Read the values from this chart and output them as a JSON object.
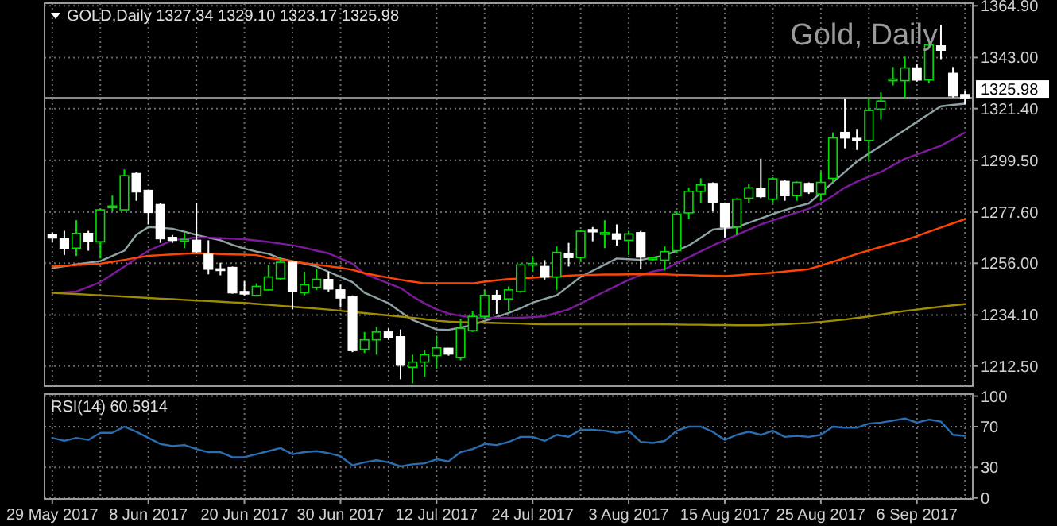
{
  "chart_data": [
    {
      "type": "candlestick",
      "title": "Gold, Daily",
      "subtitle": "GOLD,Daily 1327.34 1329.10 1323.17 1325.98",
      "colors": [
        "#ffffff",
        "#ffffff",
        "#00e000",
        "#ffffff",
        "#00e000",
        "#00e000",
        "#00e000",
        "#ffffff",
        "#ffffff",
        "#ffffff",
        "#ffffff",
        "#00e000",
        "#ffffff",
        "#ffffff",
        "#ffffff",
        "#ffffff",
        "#ffffff",
        "#00e000",
        "#00e000",
        "#00e000",
        "#ffffff",
        "#00e000",
        "#00e000",
        "#ffffff",
        "#ffffff",
        "#ffffff",
        "#00e000",
        "#00e000",
        "#ffffff",
        "#ffffff",
        "#00e000",
        "#00e000",
        "#00e000",
        "#ffffff",
        "#00e000",
        "#00e000",
        "#00e000",
        "#ffffff",
        "#00e000",
        "#00e000",
        "#00e000",
        "#ffffff",
        "#00e000",
        "#ffffff",
        "#00e000",
        "#ffffff",
        "#00e000",
        "#ffffff",
        "#00e000",
        "#ffffff",
        "#00e000",
        "#00e000",
        "#00e000",
        "#00e000",
        "#00e000",
        "#ffffff",
        "#ffffff",
        "#00e000",
        "#00e000",
        "#ffffff",
        "#00e000",
        "#ffffff",
        "#00e000",
        "#ffffff",
        "#00e000",
        "#00e000",
        "#ffffff",
        "#ffffff",
        "#00e000",
        "#00e000",
        "#00e000",
        "#00e000",
        "#ffffff",
        "#00e000",
        "#ffffff",
        "#ffffff",
        "#ffffff"
      ],
      "categories": [
        null,
        null,
        null,
        null,
        null,
        null,
        null,
        null,
        null,
        null,
        null,
        null,
        null,
        null,
        null,
        null,
        null,
        null,
        null,
        null,
        null,
        null,
        null,
        null,
        null,
        null,
        null,
        null,
        null,
        null,
        null,
        null,
        null,
        null,
        null,
        null,
        null,
        null,
        null,
        null,
        null,
        null,
        null,
        null,
        null,
        null,
        null,
        null,
        null,
        null,
        null,
        null,
        null,
        null,
        null,
        null,
        null,
        null,
        null,
        null,
        null,
        null,
        null,
        null,
        null,
        null,
        null,
        null,
        null,
        null,
        null,
        null,
        null,
        null,
        null,
        null,
        null
      ],
      "ohlc": [
        [
          1268.0,
          1269.0,
          1265.0,
          1266.7
        ],
        [
          1266.4,
          1269.7,
          1259.5,
          1262.4
        ],
        [
          1262.4,
          1274.2,
          1259.1,
          1268.6
        ],
        [
          1268.6,
          1269.7,
          1261.3,
          1265.3
        ],
        [
          1265.1,
          1279.1,
          1258.0,
          1278.6
        ],
        [
          1279.5,
          1284.6,
          1278.0,
          1280.2
        ],
        [
          1278.6,
          1295.7,
          1278.6,
          1293.0
        ],
        [
          1293.9,
          1294.6,
          1282.4,
          1286.2
        ],
        [
          1286.8,
          1287.0,
          1272.4,
          1277.5
        ],
        [
          1280.8,
          1281.3,
          1264.6,
          1266.4
        ],
        [
          1266.9,
          1268.0,
          1264.6,
          1265.7
        ],
        [
          1265.5,
          1268.8,
          1262.4,
          1266.0
        ],
        [
          1265.7,
          1281.3,
          1260.2,
          1260.9
        ],
        [
          1259.8,
          1265.7,
          1251.3,
          1253.5
        ],
        [
          1253.6,
          1256.2,
          1250.9,
          1253.4
        ],
        [
          1254.2,
          1254.6,
          1243.1,
          1243.5
        ],
        [
          1244.0,
          1248.4,
          1242.4,
          1243.0
        ],
        [
          1242.4,
          1247.5,
          1242.0,
          1246.2
        ],
        [
          1244.7,
          1255.1,
          1244.4,
          1250.2
        ],
        [
          1249.5,
          1258.6,
          1249.1,
          1256.4
        ],
        [
          1256.4,
          1256.9,
          1236.6,
          1244.0
        ],
        [
          1243.5,
          1252.4,
          1242.4,
          1246.9
        ],
        [
          1245.8,
          1253.5,
          1244.7,
          1249.2
        ],
        [
          1249.1,
          1252.4,
          1244.0,
          1245.1
        ],
        [
          1244.7,
          1246.9,
          1237.2,
          1241.3
        ],
        [
          1241.7,
          1242.4,
          1218.4,
          1219.1
        ],
        [
          1219.6,
          1226.9,
          1218.0,
          1223.6
        ],
        [
          1223.6,
          1229.1,
          1217.3,
          1226.9
        ],
        [
          1226.9,
          1228.4,
          1223.6,
          1224.7
        ],
        [
          1224.9,
          1228.0,
          1206.9,
          1212.9
        ],
        [
          1212.0,
          1217.3,
          1205.2,
          1214.2
        ],
        [
          1214.2,
          1219.1,
          1208.0,
          1217.3
        ],
        [
          1216.9,
          1225.3,
          1211.4,
          1220.2
        ],
        [
          1220.0,
          1220.2,
          1216.9,
          1217.6
        ],
        [
          1216.2,
          1232.4,
          1214.9,
          1228.4
        ],
        [
          1227.5,
          1235.7,
          1226.9,
          1233.5
        ],
        [
          1233.5,
          1244.7,
          1232.4,
          1242.4
        ],
        [
          1242.4,
          1244.7,
          1234.6,
          1240.9
        ],
        [
          1240.9,
          1246.2,
          1235.8,
          1244.7
        ],
        [
          1244.0,
          1255.7,
          1243.5,
          1255.3
        ],
        [
          1255.5,
          1258.6,
          1252.4,
          1255.9
        ],
        [
          1254.6,
          1257.3,
          1249.1,
          1250.2
        ],
        [
          1250.2,
          1263.1,
          1244.7,
          1260.6
        ],
        [
          1260.2,
          1264.6,
          1254.6,
          1258.4
        ],
        [
          1258.4,
          1270.2,
          1256.9,
          1269.5
        ],
        [
          1270.2,
          1271.3,
          1265.3,
          1269.3
        ],
        [
          1268.6,
          1274.2,
          1262.4,
          1268.9
        ],
        [
          1268.4,
          1272.4,
          1263.5,
          1266.2
        ],
        [
          1265.7,
          1269.7,
          1259.5,
          1268.4
        ],
        [
          1268.9,
          1269.7,
          1253.5,
          1258.6
        ],
        [
          1257.9,
          1258.6,
          1256.9,
          1258.2
        ],
        [
          1257.3,
          1263.1,
          1252.9,
          1260.9
        ],
        [
          1261.3,
          1277.9,
          1260.2,
          1276.8
        ],
        [
          1277.3,
          1287.9,
          1274.6,
          1286.4
        ],
        [
          1286.4,
          1291.9,
          1281.3,
          1289.1
        ],
        [
          1289.7,
          1290.2,
          1277.9,
          1281.7
        ],
        [
          1281.3,
          1281.7,
          1266.9,
          1271.3
        ],
        [
          1271.3,
          1283.5,
          1268.0,
          1283.1
        ],
        [
          1283.5,
          1289.7,
          1281.3,
          1287.9
        ],
        [
          1287.5,
          1300.2,
          1283.5,
          1284.2
        ],
        [
          1283.1,
          1292.4,
          1281.7,
          1291.7
        ],
        [
          1290.6,
          1291.3,
          1282.4,
          1284.6
        ],
        [
          1284.6,
          1290.6,
          1282.4,
          1290.2
        ],
        [
          1289.7,
          1290.2,
          1285.3,
          1286.2
        ],
        [
          1285.3,
          1294.6,
          1282.4,
          1290.2
        ],
        [
          1291.9,
          1311.3,
          1290.2,
          1309.0
        ],
        [
          1311.3,
          1325.7,
          1304.6,
          1309.0
        ],
        [
          1308.8,
          1312.8,
          1303.9,
          1307.9
        ],
        [
          1307.9,
          1325.7,
          1299.0,
          1320.6
        ],
        [
          1321.2,
          1328.3,
          1316.8,
          1324.6
        ],
        [
          1333.2,
          1339.0,
          1331.2,
          1333.9
        ],
        [
          1333.2,
          1343.4,
          1325.7,
          1338.6
        ],
        [
          1338.6,
          1340.1,
          1332.8,
          1333.5
        ],
        [
          1333.5,
          1349.0,
          1332.3,
          1348.3
        ],
        [
          1347.9,
          1356.8,
          1342.3,
          1346.1
        ],
        [
          1336.3,
          1339.0,
          1326.1,
          1326.8
        ],
        [
          1327.34,
          1329.1,
          1323.17,
          1325.98
        ]
      ],
      "series": [
        {
          "type": "line",
          "color": "#8fa3a6",
          "values": [
            1254.0,
            1254.7,
            1255.5,
            1256.2,
            1256.9,
            1259.1,
            1261.3,
            1268.0,
            1271.3,
            1271.0,
            1270.6,
            1269.3,
            1268.0,
            1266.8,
            1265.7,
            1263.8,
            1262.2,
            1260.9,
            1260.0,
            1258.0,
            1256.9,
            1255.8,
            1254.6,
            1252.4,
            1250.2,
            1248.0,
            1243.5,
            1241.3,
            1239.1,
            1235.4,
            1232.0,
            1230.0,
            1228.0,
            1227.8,
            1228.8,
            1229.9,
            1231.6,
            1233.3,
            1235.0,
            1237.0,
            1239.3,
            1240.9,
            1242.4,
            1246.3,
            1250.2,
            1252.8,
            1255.4,
            1258.0,
            1257.7,
            1257.4,
            1258.3,
            1259.3,
            1261.3,
            1263.5,
            1266.8,
            1270.2,
            1270.8,
            1271.3,
            1273.1,
            1275.0,
            1276.8,
            1278.5,
            1280.0,
            1281.3,
            1285.7,
            1290.2,
            1294.6,
            1299.0,
            1302.4,
            1305.7,
            1309.0,
            1312.4,
            1315.8,
            1319.1,
            1322.4,
            1323.0,
            1323.5
          ]
        },
        {
          "type": "line",
          "color": "#7d1a9c",
          "values": [
            1243.5,
            1243.7,
            1244.0,
            1246.0,
            1248.0,
            1251.3,
            1254.6,
            1258.0,
            1261.3,
            1263.5,
            1265.7,
            1266.3,
            1266.9,
            1266.8,
            1266.6,
            1266.4,
            1266.2,
            1265.6,
            1265.0,
            1264.3,
            1263.6,
            1262.5,
            1261.3,
            1260.2,
            1258.0,
            1255.8,
            1251.5,
            1249.5,
            1247.5,
            1245.5,
            1242.0,
            1239.0,
            1236.5,
            1234.7,
            1233.8,
            1233.0,
            1232.9,
            1232.9,
            1232.9,
            1232.9,
            1233.2,
            1233.6,
            1235.0,
            1236.5,
            1239.0,
            1241.5,
            1244.0,
            1246.5,
            1249.0,
            1251.0,
            1252.5,
            1253.5,
            1256.0,
            1258.5,
            1261.0,
            1263.5,
            1265.7,
            1268.0,
            1270.2,
            1272.4,
            1274.1,
            1275.8,
            1277.5,
            1279.1,
            1281.5,
            1284.5,
            1288.0,
            1290.5,
            1292.6,
            1294.6,
            1297.4,
            1300.2,
            1302.0,
            1303.9,
            1305.7,
            1308.5,
            1311.3
          ]
        },
        {
          "type": "line",
          "color": "#ff4500",
          "values": [
            1254.6,
            1254.9,
            1255.2,
            1255.5,
            1255.8,
            1256.6,
            1257.4,
            1258.3,
            1259.1,
            1259.4,
            1259.7,
            1260.0,
            1260.2,
            1260.1,
            1259.9,
            1259.7,
            1259.6,
            1259.4,
            1258.2,
            1257.6,
            1256.8,
            1256.0,
            1255.4,
            1254.7,
            1254.1,
            1253.2,
            1251.8,
            1250.8,
            1249.9,
            1249.0,
            1248.2,
            1247.5,
            1247.5,
            1247.5,
            1247.5,
            1247.5,
            1248.2,
            1248.8,
            1249.3,
            1249.6,
            1249.9,
            1250.2,
            1250.4,
            1250.7,
            1251.0,
            1251.1,
            1251.2,
            1251.2,
            1251.3,
            1251.3,
            1251.3,
            1251.3,
            1251.1,
            1251.0,
            1250.8,
            1250.7,
            1250.6,
            1250.9,
            1251.3,
            1251.6,
            1252.0,
            1252.5,
            1253.0,
            1253.5,
            1255.0,
            1256.6,
            1258.2,
            1259.9,
            1261.4,
            1262.9,
            1264.4,
            1265.7,
            1267.5,
            1269.3,
            1271.1,
            1272.9,
            1274.6
          ]
        },
        {
          "type": "line",
          "color": "#a08c00",
          "values": [
            1243.5,
            1243.2,
            1243.0,
            1242.7,
            1242.4,
            1242.2,
            1241.9,
            1241.6,
            1241.3,
            1241.0,
            1240.8,
            1240.5,
            1240.2,
            1240.0,
            1239.7,
            1239.4,
            1239.2,
            1238.8,
            1238.4,
            1238.0,
            1237.6,
            1237.2,
            1236.8,
            1236.4,
            1235.9,
            1235.4,
            1234.9,
            1234.4,
            1233.9,
            1233.4,
            1232.9,
            1232.3,
            1231.7,
            1231.3,
            1231.1,
            1231.0,
            1230.9,
            1230.7,
            1230.6,
            1230.5,
            1230.3,
            1230.2,
            1230.2,
            1230.2,
            1230.2,
            1230.2,
            1230.2,
            1230.2,
            1230.2,
            1230.2,
            1230.2,
            1230.2,
            1230.1,
            1230.0,
            1230.0,
            1229.9,
            1229.9,
            1229.8,
            1229.8,
            1229.8,
            1230.0,
            1230.2,
            1230.5,
            1230.7,
            1231.2,
            1231.7,
            1232.2,
            1232.8,
            1233.5,
            1234.3,
            1235.1,
            1235.8,
            1236.4,
            1237.0,
            1237.6,
            1238.2,
            1238.7
          ]
        }
      ],
      "ylim": [
        1204,
        1366
      ],
      "yticks": [
        {
          "value": 1212.5,
          "label": "1212.50"
        },
        {
          "value": 1234.1,
          "label": "1234.10"
        },
        {
          "value": 1256,
          "label": "1256.00"
        },
        {
          "value": 1277.6,
          "label": "1277.60"
        },
        {
          "value": 1299.5,
          "label": "1299.50"
        },
        {
          "value": 1321.4,
          "label": "1321.40"
        },
        {
          "value": 1343,
          "label": "1343.00"
        },
        {
          "value": 1364.9,
          "label": "1364.90"
        }
      ],
      "grid": true,
      "ref_lines": [
        {
          "axis": "y",
          "value": 1325.98,
          "label": "1325.98",
          "color": "#8a8a8a"
        }
      ]
    },
    {
      "type": "line",
      "title": "RSI(14) 60.5914",
      "categories": [
        "29 May 2017",
        null,
        null,
        null,
        null,
        null,
        null,
        null,
        "8 Jun 2017",
        null,
        null,
        null,
        null,
        null,
        null,
        null,
        "20 Jun 2017",
        null,
        null,
        null,
        null,
        null,
        null,
        null,
        "30 Jun 2017",
        null,
        null,
        null,
        null,
        null,
        null,
        null,
        "12 Jul 2017",
        null,
        null,
        null,
        null,
        null,
        null,
        null,
        "24 Jul 2017",
        null,
        null,
        null,
        null,
        null,
        null,
        null,
        "3 Aug 2017",
        null,
        null,
        null,
        null,
        null,
        null,
        null,
        "15 Aug 2017",
        null,
        null,
        null,
        null,
        null,
        null,
        null,
        "25 Aug 2017",
        null,
        null,
        null,
        null,
        null,
        null,
        null,
        "6 Sep 2017",
        null,
        null,
        null,
        null
      ],
      "series": [
        {
          "color": "#2a6db0",
          "values": [
            59,
            56,
            59,
            57,
            64,
            64,
            70,
            65,
            59,
            53,
            51,
            52,
            48,
            45,
            45,
            40,
            40,
            43,
            46,
            49,
            43,
            45,
            46,
            44,
            41,
            32,
            35,
            37,
            35,
            31,
            33,
            34,
            38,
            36,
            45,
            48,
            53,
            52,
            55,
            60,
            60,
            56,
            62,
            60,
            67,
            67,
            66,
            64,
            66,
            55,
            54,
            56,
            66,
            70,
            70,
            65,
            57,
            62,
            65,
            62,
            66,
            60,
            61,
            60,
            62,
            70,
            69,
            69,
            73,
            74,
            76,
            78,
            74,
            77,
            75,
            62,
            61
          ]
        }
      ],
      "ylim": [
        -1,
        102
      ],
      "yticks": [
        0,
        30,
        70,
        100
      ],
      "grid": true
    }
  ]
}
